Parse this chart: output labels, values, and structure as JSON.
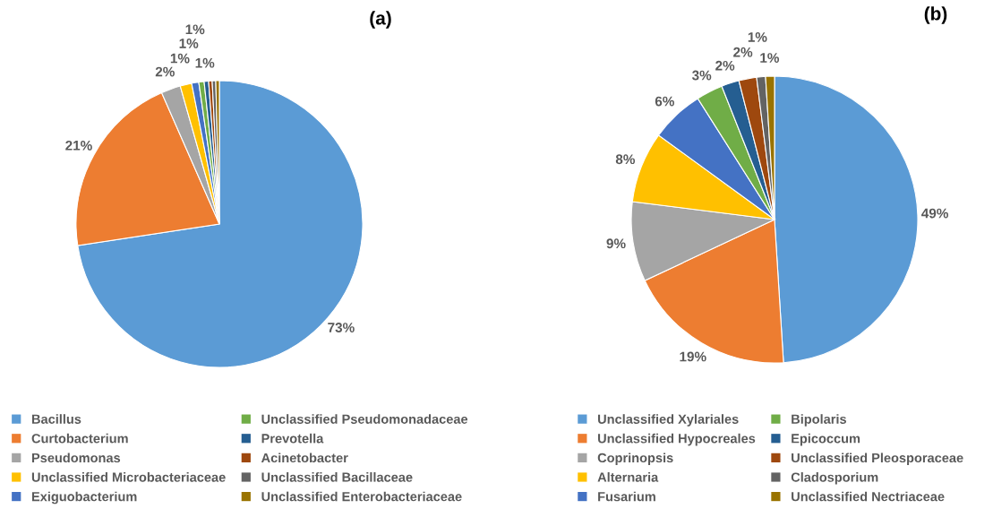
{
  "chart_data": [
    {
      "type": "pie",
      "title": "(a)",
      "legend": "bottom",
      "categories": [
        "Bacillus",
        "Curtobacterium",
        "Pseudomonas",
        "Unclassified Microbacteriaceae",
        "Exiguobacterium",
        "Unclassified Pseudomonadaceae",
        "Prevotella",
        "Acinetobacter",
        "Unclassified Bacillaceae",
        "Unclassified Enterobacteriaceae"
      ],
      "values": [
        72.6,
        20.8,
        2.2,
        1.3,
        0.8,
        0.6,
        0.5,
        0.4,
        0.4,
        0.4
      ],
      "value_labels": [
        "73%",
        "21%",
        "2%",
        "1%",
        "1%",
        "1%",
        "1%",
        null,
        null,
        null
      ],
      "colors": [
        "#5b9bd5",
        "#ed7d31",
        "#a5a5a5",
        "#ffc000",
        "#4472c4",
        "#70ad47",
        "#255e91",
        "#9e480e",
        "#636363",
        "#997300"
      ]
    },
    {
      "type": "pie",
      "title": "(b)",
      "legend": "bottom",
      "categories": [
        "Unclassified Xylariales",
        "Unclassified Hypocreales",
        "Coprinopsis",
        "Alternaria",
        "Fusarium",
        "Bipolaris",
        "Epicoccum",
        "Unclassified Pleosporaceae",
        "Cladosporium",
        "Unclassified Nectriaceae"
      ],
      "values": [
        49,
        19,
        9,
        8,
        6,
        3,
        2,
        2,
        1,
        1
      ],
      "value_labels": [
        "49%",
        "19%",
        "9%",
        "8%",
        "6%",
        "3%",
        "2%",
        "2%",
        "1%",
        "1%"
      ],
      "colors": [
        "#5b9bd5",
        "#ed7d31",
        "#a5a5a5",
        "#ffc000",
        "#4472c4",
        "#70ad47",
        "#255e91",
        "#9e480e",
        "#636363",
        "#997300"
      ]
    }
  ]
}
